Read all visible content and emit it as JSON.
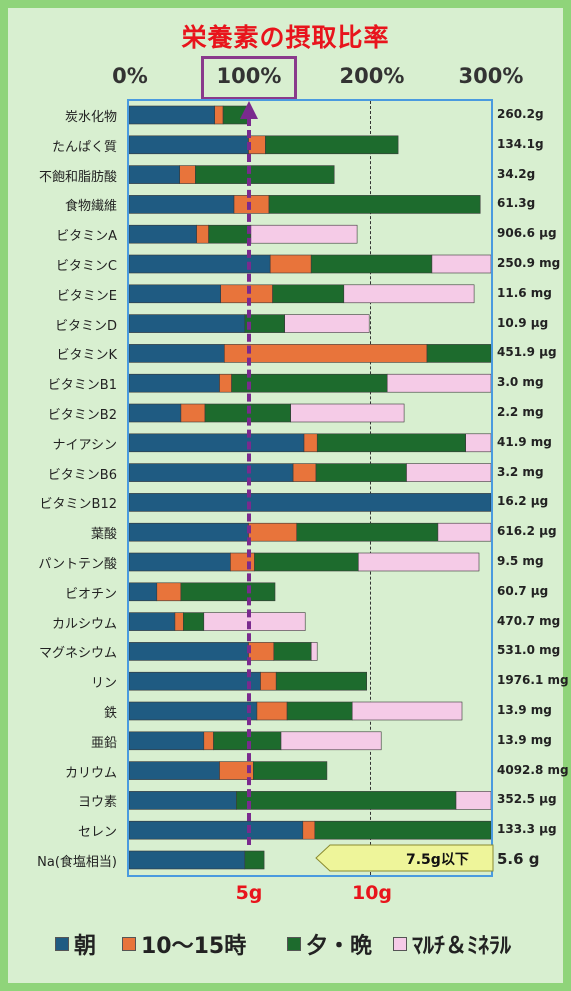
{
  "chart_data": {
    "type": "bar",
    "stacked": true,
    "orientation": "horizontal",
    "title": "栄養素の摂取比率",
    "x_ticks": [
      "0%",
      "100%",
      "200%",
      "300%"
    ],
    "xlim": [
      0,
      300
    ],
    "x_unit": "%",
    "x_annotations": [
      "5g",
      "10g"
    ],
    "series": [
      {
        "name": "朝",
        "color": "#1f5b82"
      },
      {
        "name": "10～15時",
        "color": "#e8743b"
      },
      {
        "name": "夕・晩",
        "color": "#1d6b2d"
      },
      {
        "name": "ﾏﾙﾁ＆ﾐﾈﾗﾙ",
        "color": "#f5cbe7"
      }
    ],
    "categories": [
      {
        "label": "炭水化物",
        "amount": "260.2g",
        "values": [
          71,
          7,
          21,
          0
        ]
      },
      {
        "label": "たんぱく質",
        "amount": "134.1g",
        "values": [
          99,
          14,
          110,
          0
        ]
      },
      {
        "label": "不飽和脂肪酸",
        "amount": "34.2g",
        "values": [
          42,
          13,
          115,
          0
        ]
      },
      {
        "label": "食物繊維",
        "amount": "61.3g",
        "values": [
          87,
          29,
          175,
          0
        ]
      },
      {
        "label": "ビタミンA",
        "amount": "906.6 μg",
        "values": [
          56,
          10,
          35,
          88
        ]
      },
      {
        "label": "ビタミンC",
        "amount": "250.9 mg",
        "values": [
          117,
          34,
          100,
          49
        ]
      },
      {
        "label": "ビタミンE",
        "amount": "11.6 mg",
        "values": [
          76,
          43,
          59,
          108
        ]
      },
      {
        "label": "ビタミンD",
        "amount": "10.9 μg",
        "values": [
          96,
          0,
          33,
          70
        ]
      },
      {
        "label": "ビタミンK",
        "amount": "451.9 μg",
        "values": [
          79,
          168,
          53,
          0
        ]
      },
      {
        "label": "ビタミンB1",
        "amount": "3.0 mg",
        "values": [
          75,
          10,
          129,
          86
        ]
      },
      {
        "label": "ビタミンB2",
        "amount": "2.2 mg",
        "values": [
          43,
          20,
          71,
          94
        ]
      },
      {
        "label": "ナイアシン",
        "amount": "41.9 mg",
        "values": [
          145,
          11,
          123,
          21
        ]
      },
      {
        "label": "ビタミンB6",
        "amount": "3.2 mg",
        "values": [
          136,
          19,
          75,
          70
        ]
      },
      {
        "label": "ビタミンB12",
        "amount": "16.2 μg",
        "values": [
          300,
          0,
          0,
          0
        ]
      },
      {
        "label": "葉酸",
        "amount": "616.2 μg",
        "values": [
          99,
          40,
          117,
          44
        ]
      },
      {
        "label": "パントテン酸",
        "amount": "9.5 mg",
        "values": [
          84,
          20,
          86,
          100
        ]
      },
      {
        "label": "ビオチン",
        "amount": "60.7 μg",
        "values": [
          23,
          20,
          78,
          0
        ]
      },
      {
        "label": "カルシウム",
        "amount": "470.7 mg",
        "values": [
          38,
          7,
          17,
          84
        ]
      },
      {
        "label": "マグネシウム",
        "amount": "531.0 mg",
        "values": [
          99,
          21,
          31,
          5
        ]
      },
      {
        "label": "リン",
        "amount": "1976.1 mg",
        "values": [
          109,
          13,
          75,
          0
        ]
      },
      {
        "label": "鉄",
        "amount": "13.9 mg",
        "values": [
          106,
          25,
          54,
          91
        ]
      },
      {
        "label": "亜鉛",
        "amount": "13.9 mg",
        "values": [
          62,
          8,
          56,
          83
        ]
      },
      {
        "label": "カリウム",
        "amount": "4092.8 mg",
        "values": [
          75,
          28,
          61,
          0
        ]
      },
      {
        "label": "ヨウ素",
        "amount": "352.5 μg",
        "values": [
          89,
          0,
          182,
          29
        ]
      },
      {
        "label": "セレン",
        "amount": "133.3 μg",
        "values": [
          144,
          10,
          146,
          0
        ]
      },
      {
        "label": "Na(食塩相当)",
        "amount": "5.6 g",
        "values": [
          96,
          0,
          16,
          0
        ]
      }
    ],
    "limit_label": "7.5g以下",
    "legend_position": "bottom"
  }
}
